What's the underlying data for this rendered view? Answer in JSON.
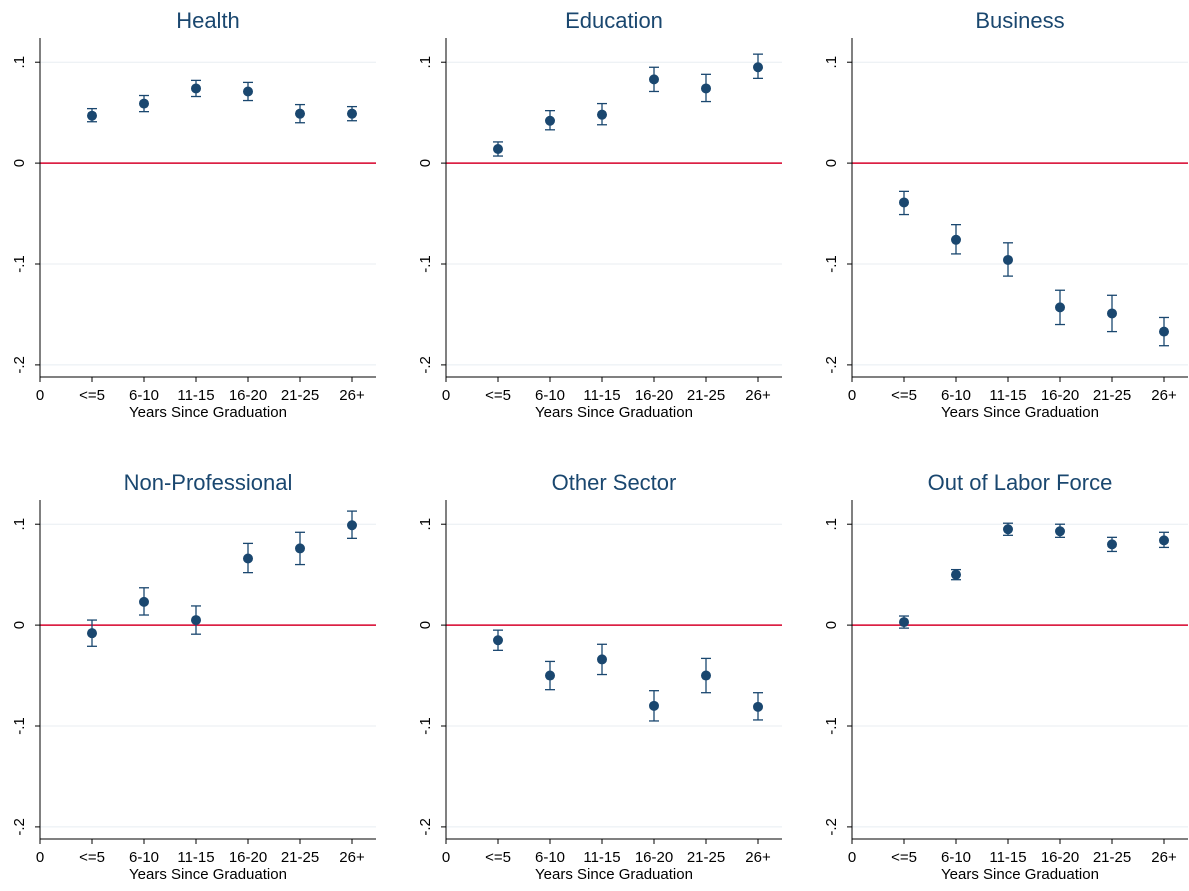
{
  "figure": {
    "colors": {
      "marker": "#1a476f",
      "zero_line": "#d6002a",
      "grid": "#e8eef2",
      "axis": "#000000",
      "title": "#1a476f",
      "background": "#ffffff"
    }
  },
  "chart_data": [
    {
      "type": "scatter",
      "title": "Health",
      "xlabel": "Years Since Graduation",
      "x_tick_labels": [
        "0",
        "<=5",
        "6-10",
        "11-15",
        "16-20",
        "21-25",
        "26+"
      ],
      "y_tick_labels": [
        ".1",
        "0",
        "-.1",
        "-.2"
      ],
      "y_ticks": [
        0.1,
        0,
        -0.1,
        -0.2
      ],
      "ylim": [
        -0.212,
        0.124
      ],
      "grid": true,
      "reference_line": 0,
      "categories": [
        "<=5",
        "6-10",
        "11-15",
        "16-20",
        "21-25",
        "26+"
      ],
      "values": [
        0.047,
        0.059,
        0.074,
        0.071,
        0.049,
        0.049
      ],
      "ci_low": [
        0.041,
        0.051,
        0.066,
        0.062,
        0.04,
        0.042
      ],
      "ci_high": [
        0.054,
        0.067,
        0.082,
        0.08,
        0.058,
        0.056
      ]
    },
    {
      "type": "scatter",
      "title": "Education",
      "xlabel": "Years Since Graduation",
      "x_tick_labels": [
        "0",
        "<=5",
        "6-10",
        "11-15",
        "16-20",
        "21-25",
        "26+"
      ],
      "y_tick_labels": [
        ".1",
        "0",
        "-.1",
        "-.2"
      ],
      "y_ticks": [
        0.1,
        0,
        -0.1,
        -0.2
      ],
      "ylim": [
        -0.212,
        0.124
      ],
      "grid": true,
      "reference_line": 0,
      "categories": [
        "<=5",
        "6-10",
        "11-15",
        "16-20",
        "21-25",
        "26+"
      ],
      "values": [
        0.014,
        0.042,
        0.048,
        0.083,
        0.074,
        0.095
      ],
      "ci_low": [
        0.007,
        0.033,
        0.038,
        0.071,
        0.061,
        0.084
      ],
      "ci_high": [
        0.021,
        0.052,
        0.059,
        0.095,
        0.088,
        0.108
      ]
    },
    {
      "type": "scatter",
      "title": "Business",
      "xlabel": "Years Since Graduation",
      "x_tick_labels": [
        "0",
        "<=5",
        "6-10",
        "11-15",
        "16-20",
        "21-25",
        "26+"
      ],
      "y_tick_labels": [
        ".1",
        "0",
        "-.1",
        "-.2"
      ],
      "y_ticks": [
        0.1,
        0,
        -0.1,
        -0.2
      ],
      "ylim": [
        -0.212,
        0.124
      ],
      "grid": true,
      "reference_line": 0,
      "categories": [
        "<=5",
        "6-10",
        "11-15",
        "16-20",
        "21-25",
        "26+"
      ],
      "values": [
        -0.039,
        -0.076,
        -0.096,
        -0.143,
        -0.149,
        -0.167
      ],
      "ci_low": [
        -0.051,
        -0.09,
        -0.112,
        -0.16,
        -0.167,
        -0.181
      ],
      "ci_high": [
        -0.028,
        -0.061,
        -0.079,
        -0.126,
        -0.131,
        -0.153
      ]
    },
    {
      "type": "scatter",
      "title": "Non-Professional",
      "xlabel": "Years Since Graduation",
      "x_tick_labels": [
        "0",
        "<=5",
        "6-10",
        "11-15",
        "16-20",
        "21-25",
        "26+"
      ],
      "y_tick_labels": [
        ".1",
        "0",
        "-.1",
        "-.2"
      ],
      "y_ticks": [
        0.1,
        0,
        -0.1,
        -0.2
      ],
      "ylim": [
        -0.212,
        0.124
      ],
      "grid": true,
      "reference_line": 0,
      "categories": [
        "<=5",
        "6-10",
        "11-15",
        "16-20",
        "21-25",
        "26+"
      ],
      "values": [
        -0.008,
        0.023,
        0.005,
        0.066,
        0.076,
        0.099
      ],
      "ci_low": [
        -0.021,
        0.01,
        -0.009,
        0.052,
        0.06,
        0.086
      ],
      "ci_high": [
        0.005,
        0.037,
        0.019,
        0.081,
        0.092,
        0.113
      ]
    },
    {
      "type": "scatter",
      "title": "Other Sector",
      "xlabel": "Years Since Graduation",
      "x_tick_labels": [
        "0",
        "<=5",
        "6-10",
        "11-15",
        "16-20",
        "21-25",
        "26+"
      ],
      "y_tick_labels": [
        ".1",
        "0",
        "-.1",
        "-.2"
      ],
      "y_ticks": [
        0.1,
        0,
        -0.1,
        -0.2
      ],
      "ylim": [
        -0.212,
        0.124
      ],
      "grid": true,
      "reference_line": 0,
      "categories": [
        "<=5",
        "6-10",
        "11-15",
        "16-20",
        "21-25",
        "26+"
      ],
      "values": [
        -0.015,
        -0.05,
        -0.034,
        -0.08,
        -0.05,
        -0.081
      ],
      "ci_low": [
        -0.025,
        -0.064,
        -0.049,
        -0.095,
        -0.067,
        -0.094
      ],
      "ci_high": [
        -0.005,
        -0.036,
        -0.019,
        -0.065,
        -0.033,
        -0.067
      ]
    },
    {
      "type": "scatter",
      "title": "Out of Labor Force",
      "xlabel": "Years Since Graduation",
      "x_tick_labels": [
        "0",
        "<=5",
        "6-10",
        "11-15",
        "16-20",
        "21-25",
        "26+"
      ],
      "y_tick_labels": [
        ".1",
        "0",
        "-.1",
        "-.2"
      ],
      "y_ticks": [
        0.1,
        0,
        -0.1,
        -0.2
      ],
      "ylim": [
        -0.212,
        0.124
      ],
      "grid": true,
      "reference_line": 0,
      "categories": [
        "<=5",
        "6-10",
        "11-15",
        "16-20",
        "21-25",
        "26+"
      ],
      "values": [
        0.003,
        0.05,
        0.095,
        0.093,
        0.08,
        0.084
      ],
      "ci_low": [
        -0.003,
        0.045,
        0.089,
        0.087,
        0.073,
        0.077
      ],
      "ci_high": [
        0.009,
        0.055,
        0.101,
        0.1,
        0.087,
        0.092
      ]
    }
  ]
}
